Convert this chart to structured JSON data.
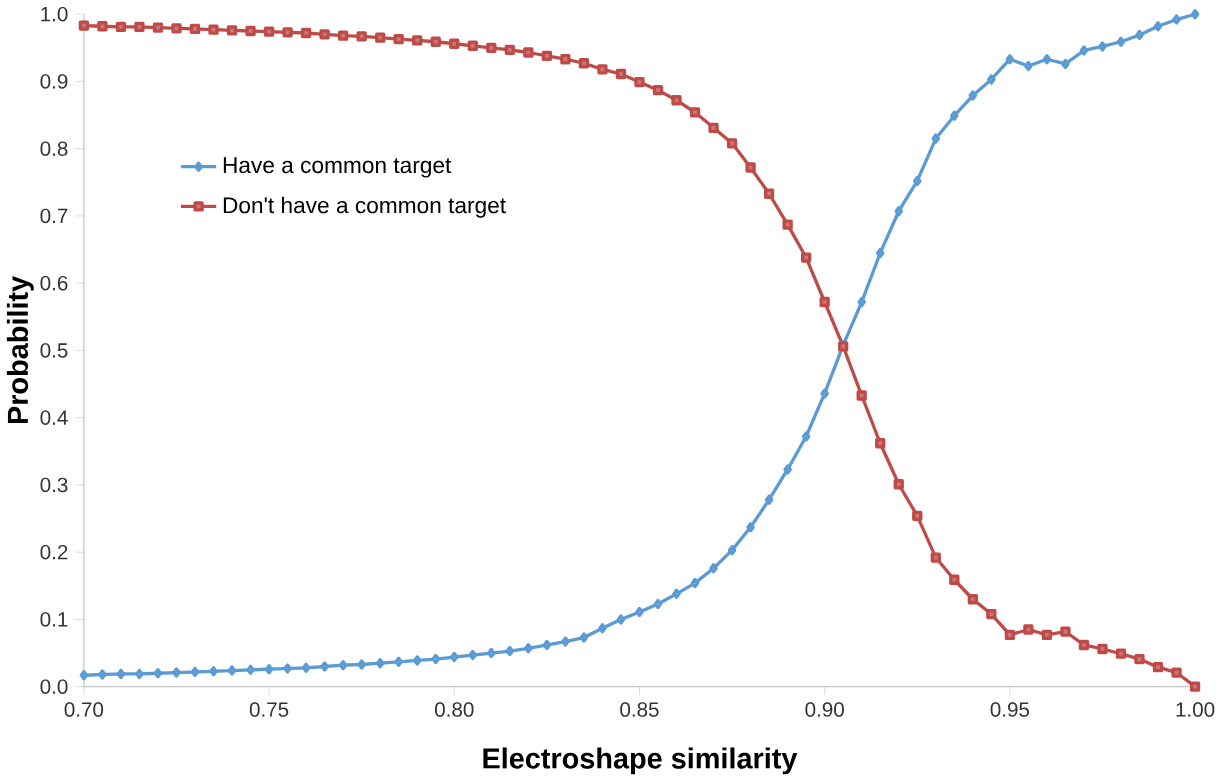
{
  "chart_data": {
    "type": "line",
    "xlabel": "Electroshape similarity",
    "ylabel": "Probability",
    "x": [
      0.7,
      0.705,
      0.71,
      0.715,
      0.72,
      0.725,
      0.73,
      0.735,
      0.74,
      0.745,
      0.75,
      0.755,
      0.76,
      0.765,
      0.77,
      0.775,
      0.78,
      0.785,
      0.79,
      0.795,
      0.8,
      0.805,
      0.81,
      0.815,
      0.82,
      0.825,
      0.83,
      0.835,
      0.84,
      0.845,
      0.85,
      0.855,
      0.86,
      0.865,
      0.87,
      0.875,
      0.88,
      0.885,
      0.89,
      0.895,
      0.9,
      0.905,
      0.91,
      0.915,
      0.92,
      0.925,
      0.93,
      0.935,
      0.94,
      0.945,
      0.95,
      0.955,
      0.96,
      0.965,
      0.97,
      0.975,
      0.98,
      0.985,
      0.99,
      0.995,
      1.0
    ],
    "series": [
      {
        "name": "Have a common target",
        "color": "#5b9bd5",
        "marker": "diamond",
        "values": [
          0.017,
          0.018,
          0.019,
          0.019,
          0.02,
          0.021,
          0.022,
          0.023,
          0.024,
          0.025,
          0.026,
          0.027,
          0.028,
          0.03,
          0.032,
          0.033,
          0.035,
          0.037,
          0.039,
          0.041,
          0.044,
          0.047,
          0.05,
          0.053,
          0.057,
          0.062,
          0.067,
          0.073,
          0.087,
          0.1,
          0.111,
          0.123,
          0.138,
          0.154,
          0.176,
          0.203,
          0.237,
          0.278,
          0.323,
          0.372,
          0.436,
          0.508,
          0.572,
          0.645,
          0.707,
          0.752,
          0.815,
          0.849,
          0.879,
          0.903,
          0.933,
          0.923,
          0.933,
          0.926,
          0.946,
          0.952,
          0.959,
          0.969,
          0.982,
          0.992,
          1.0
        ]
      },
      {
        "name": "Don't have a common target",
        "color": "#be4b48",
        "marker": "square",
        "values": [
          0.983,
          0.982,
          0.981,
          0.981,
          0.98,
          0.979,
          0.978,
          0.977,
          0.976,
          0.975,
          0.974,
          0.973,
          0.972,
          0.97,
          0.968,
          0.967,
          0.965,
          0.963,
          0.961,
          0.959,
          0.956,
          0.953,
          0.95,
          0.947,
          0.943,
          0.938,
          0.933,
          0.927,
          0.918,
          0.911,
          0.899,
          0.887,
          0.872,
          0.854,
          0.831,
          0.808,
          0.772,
          0.733,
          0.687,
          0.638,
          0.572,
          0.506,
          0.433,
          0.362,
          0.301,
          0.254,
          0.192,
          0.159,
          0.13,
          0.108,
          0.077,
          0.085,
          0.077,
          0.082,
          0.062,
          0.056,
          0.049,
          0.041,
          0.029,
          0.021,
          0.0
        ]
      }
    ],
    "xlim": [
      0.7,
      1.0
    ],
    "xticks": [
      {
        "value": 0.7,
        "label": "0.70"
      },
      {
        "value": 0.75,
        "label": "0.75"
      },
      {
        "value": 0.8,
        "label": "0.80"
      },
      {
        "value": 0.85,
        "label": "0.85"
      },
      {
        "value": 0.9,
        "label": "0.90"
      },
      {
        "value": 0.95,
        "label": "0.95"
      },
      {
        "value": 1.0,
        "label": "1.00"
      }
    ],
    "ylim": [
      0,
      1
    ],
    "yticks": [
      {
        "value": 0,
        "label": "0.0"
      },
      {
        "value": 0.1,
        "label": "0.1"
      },
      {
        "value": 0.2,
        "label": "0.2"
      },
      {
        "value": 0.3,
        "label": "0.3"
      },
      {
        "value": 0.4,
        "label": "0.4"
      },
      {
        "value": 0.5,
        "label": "0.5"
      },
      {
        "value": 0.6,
        "label": "0.6"
      },
      {
        "value": 0.7,
        "label": "0.7"
      },
      {
        "value": 0.8,
        "label": "0.8"
      },
      {
        "value": 0.9,
        "label": "0.9"
      },
      {
        "value": 1.0,
        "label": "1.0"
      }
    ],
    "grid": false,
    "legend": "left",
    "line_style": "solid"
  }
}
